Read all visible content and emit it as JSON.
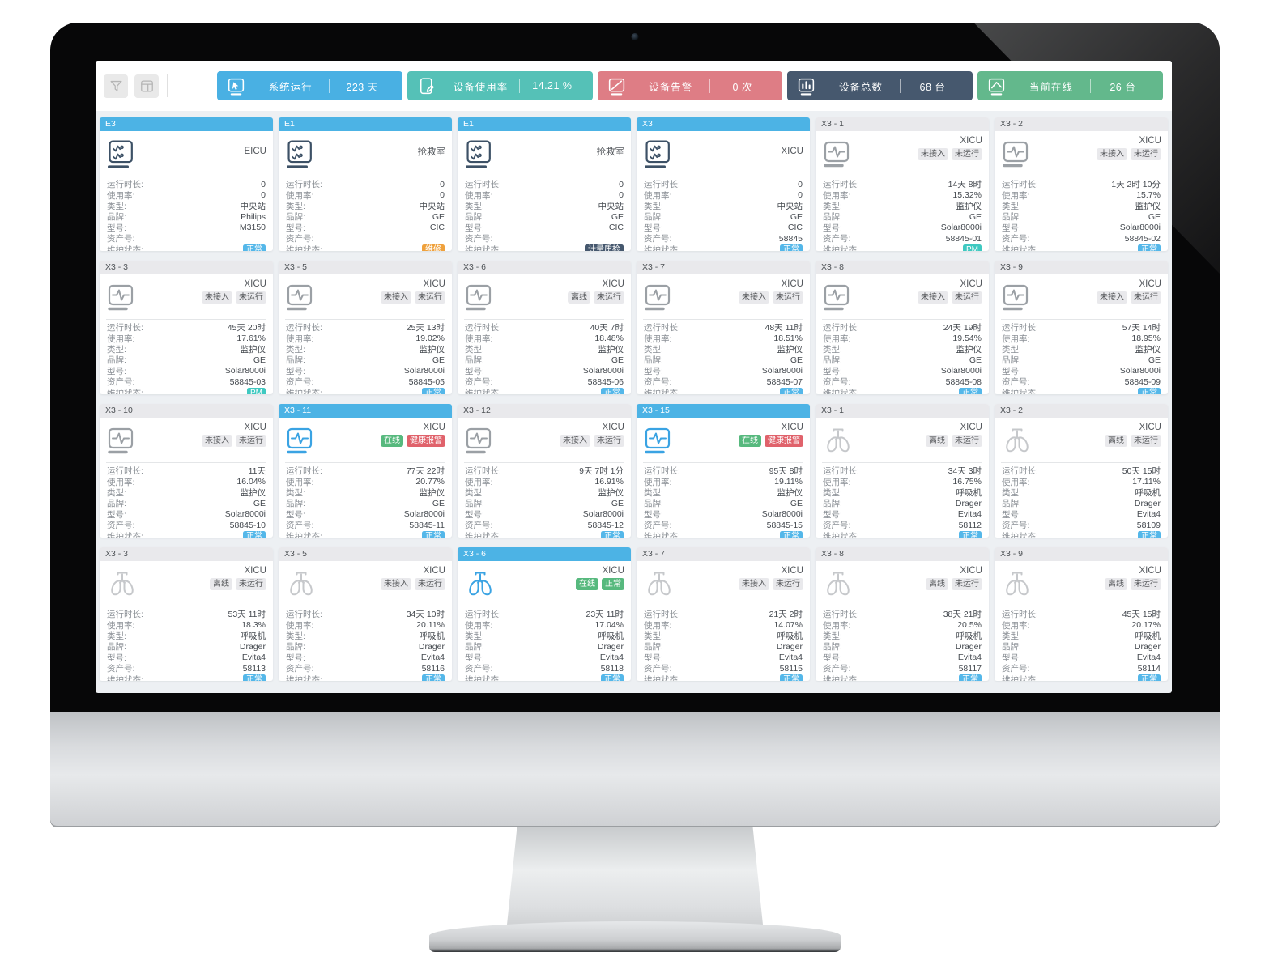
{
  "toolbar": {
    "buttons": [
      {
        "id": "filter",
        "icon": "funnel-icon"
      },
      {
        "id": "layout",
        "icon": "layout-icon"
      }
    ],
    "stats": [
      {
        "id": "system-uptime",
        "label": "系统运行",
        "value": "223 天",
        "color": "#49b0e3",
        "icon": "cursor-screen"
      },
      {
        "id": "usage-rate",
        "label": "设备使用率",
        "value": "14.21 %",
        "color": "#55c1b7",
        "icon": "tablet-edit"
      },
      {
        "id": "device-alerts",
        "label": "设备告警",
        "value": "0 次",
        "color": "#de7d85",
        "icon": "screen-alert"
      },
      {
        "id": "device-total",
        "label": "设备总数",
        "value": "68 台",
        "color": "#46586e",
        "icon": "bar-chart"
      },
      {
        "id": "online-now",
        "label": "当前在线",
        "value": "26 台",
        "color": "#63b88c",
        "icon": "trend-line"
      }
    ]
  },
  "field_labels": [
    "运行时长:",
    "使用率:",
    "类型:",
    "品牌:",
    "型号:",
    "资产号:",
    "维护状态:"
  ],
  "colors": {
    "header_blue": "#4cb3e5",
    "header_gray": "#e9e9ec",
    "badge_normal_blue": "#54b7e9",
    "badge_repair_orange": "#efa13c",
    "badge_qc_navy": "#46586e",
    "badge_pm_teal": "#3fc9c1",
    "badge_online_green": "#57b97e",
    "badge_alarm_red": "#e0626b",
    "badge_offline_gray": "#e9e9ec"
  },
  "cards": [
    {
      "header": "E3",
      "hstyle": "blue",
      "room": "EICU",
      "icon": "central",
      "badges": [],
      "values": [
        "0",
        "0",
        "中央站",
        "Philips",
        "M3150",
        ""
      ],
      "maint": {
        "text": "正常",
        "type": "blue"
      }
    },
    {
      "header": "E1",
      "hstyle": "blue",
      "room": "抢救室",
      "icon": "central",
      "badges": [],
      "values": [
        "0",
        "0",
        "中央站",
        "GE",
        "CIC",
        ""
      ],
      "maint": {
        "text": "维修",
        "type": "orange"
      }
    },
    {
      "header": "E1",
      "hstyle": "blue",
      "room": "抢救室",
      "icon": "central",
      "badges": [],
      "values": [
        "0",
        "0",
        "中央站",
        "GE",
        "CIC",
        ""
      ],
      "maint": {
        "text": "计量质检",
        "type": "navy"
      }
    },
    {
      "header": "X3",
      "hstyle": "blue",
      "room": "XICU",
      "icon": "central",
      "badges": [],
      "values": [
        "0",
        "0",
        "中央站",
        "GE",
        "CIC",
        "58845"
      ],
      "maint": {
        "text": "正常",
        "type": "blue"
      }
    },
    {
      "header": "X3 - 1",
      "hstyle": "gray",
      "room": "XICU",
      "icon": "monitor",
      "badges": [
        {
          "text": "未接入",
          "type": "gray"
        },
        {
          "text": "未运行",
          "type": "gray"
        }
      ],
      "values": [
        "14天 8时",
        "15.32%",
        "监护仪",
        "GE",
        "Solar8000i",
        "58845-01"
      ],
      "maint": {
        "text": "PM",
        "type": "teal"
      }
    },
    {
      "header": "X3 - 2",
      "hstyle": "gray",
      "room": "XICU",
      "icon": "monitor",
      "badges": [
        {
          "text": "未接入",
          "type": "gray"
        },
        {
          "text": "未运行",
          "type": "gray"
        }
      ],
      "values": [
        "1天 2时 10分",
        "15.7%",
        "监护仪",
        "GE",
        "Solar8000i",
        "58845-02"
      ],
      "maint": {
        "text": "正常",
        "type": "blue"
      }
    },
    {
      "header": "X3 - 3",
      "hstyle": "gray",
      "room": "XICU",
      "icon": "monitor",
      "badges": [
        {
          "text": "未接入",
          "type": "gray"
        },
        {
          "text": "未运行",
          "type": "gray"
        }
      ],
      "values": [
        "45天 20时",
        "17.61%",
        "监护仪",
        "GE",
        "Solar8000i",
        "58845-03"
      ],
      "maint": {
        "text": "PM",
        "type": "teal"
      }
    },
    {
      "header": "X3 - 5",
      "hstyle": "gray",
      "room": "XICU",
      "icon": "monitor",
      "badges": [
        {
          "text": "未接入",
          "type": "gray"
        },
        {
          "text": "未运行",
          "type": "gray"
        }
      ],
      "values": [
        "25天 13时",
        "19.02%",
        "监护仪",
        "GE",
        "Solar8000i",
        "58845-05"
      ],
      "maint": {
        "text": "正常",
        "type": "blue"
      }
    },
    {
      "header": "X3 - 6",
      "hstyle": "gray",
      "room": "XICU",
      "icon": "monitor",
      "badges": [
        {
          "text": "离线",
          "type": "gray"
        },
        {
          "text": "未运行",
          "type": "gray"
        }
      ],
      "values": [
        "40天 7时",
        "18.48%",
        "监护仪",
        "GE",
        "Solar8000i",
        "58845-06"
      ],
      "maint": {
        "text": "正常",
        "type": "blue"
      }
    },
    {
      "header": "X3 - 7",
      "hstyle": "gray",
      "room": "XICU",
      "icon": "monitor",
      "badges": [
        {
          "text": "未接入",
          "type": "gray"
        },
        {
          "text": "未运行",
          "type": "gray"
        }
      ],
      "values": [
        "48天 11时",
        "18.51%",
        "监护仪",
        "GE",
        "Solar8000i",
        "58845-07"
      ],
      "maint": {
        "text": "正常",
        "type": "blue"
      }
    },
    {
      "header": "X3 - 8",
      "hstyle": "gray",
      "room": "XICU",
      "icon": "monitor",
      "badges": [
        {
          "text": "未接入",
          "type": "gray"
        },
        {
          "text": "未运行",
          "type": "gray"
        }
      ],
      "values": [
        "24天 19时",
        "19.54%",
        "监护仪",
        "GE",
        "Solar8000i",
        "58845-08"
      ],
      "maint": {
        "text": "正常",
        "type": "blue"
      }
    },
    {
      "header": "X3 - 9",
      "hstyle": "gray",
      "room": "XICU",
      "icon": "monitor",
      "badges": [
        {
          "text": "未接入",
          "type": "gray"
        },
        {
          "text": "未运行",
          "type": "gray"
        }
      ],
      "values": [
        "57天 14时",
        "18.95%",
        "监护仪",
        "GE",
        "Solar8000i",
        "58845-09"
      ],
      "maint": {
        "text": "正常",
        "type": "blue"
      }
    },
    {
      "header": "X3 - 10",
      "hstyle": "gray",
      "room": "XICU",
      "icon": "monitor",
      "badges": [
        {
          "text": "未接入",
          "type": "gray"
        },
        {
          "text": "未运行",
          "type": "gray"
        }
      ],
      "values": [
        "11天",
        "16.04%",
        "监护仪",
        "GE",
        "Solar8000i",
        "58845-10"
      ],
      "maint": {
        "text": "正常",
        "type": "blue"
      }
    },
    {
      "header": "X3 - 11",
      "hstyle": "blue",
      "room": "XICU",
      "icon": "monitor-online",
      "badges": [
        {
          "text": "在线",
          "type": "green"
        },
        {
          "text": "健康报警",
          "type": "red"
        }
      ],
      "values": [
        "77天 22时",
        "20.77%",
        "监护仪",
        "GE",
        "Solar8000i",
        "58845-11"
      ],
      "maint": {
        "text": "正常",
        "type": "blue"
      }
    },
    {
      "header": "X3 - 12",
      "hstyle": "gray",
      "room": "XICU",
      "icon": "monitor",
      "badges": [
        {
          "text": "未接入",
          "type": "gray"
        },
        {
          "text": "未运行",
          "type": "gray"
        }
      ],
      "values": [
        "9天 7时 1分",
        "16.91%",
        "监护仪",
        "GE",
        "Solar8000i",
        "58845-12"
      ],
      "maint": {
        "text": "正常",
        "type": "blue"
      }
    },
    {
      "header": "X3 - 15",
      "hstyle": "blue",
      "room": "XICU",
      "icon": "monitor-online",
      "badges": [
        {
          "text": "在线",
          "type": "green"
        },
        {
          "text": "健康报警",
          "type": "red"
        }
      ],
      "values": [
        "95天 8时",
        "19.11%",
        "监护仪",
        "GE",
        "Solar8000i",
        "58845-15"
      ],
      "maint": {
        "text": "正常",
        "type": "blue"
      }
    },
    {
      "header": "X3 - 1",
      "hstyle": "gray",
      "room": "XICU",
      "icon": "lungs",
      "badges": [
        {
          "text": "离线",
          "type": "gray"
        },
        {
          "text": "未运行",
          "type": "gray"
        }
      ],
      "values": [
        "34天 3时",
        "16.75%",
        "呼吸机",
        "Drager",
        "Evita4",
        "58112"
      ],
      "maint": {
        "text": "正常",
        "type": "blue"
      }
    },
    {
      "header": "X3 - 2",
      "hstyle": "gray",
      "room": "XICU",
      "icon": "lungs",
      "badges": [
        {
          "text": "离线",
          "type": "gray"
        },
        {
          "text": "未运行",
          "type": "gray"
        }
      ],
      "values": [
        "50天 15时",
        "17.11%",
        "呼吸机",
        "Drager",
        "Evita4",
        "58109"
      ],
      "maint": {
        "text": "正常",
        "type": "blue"
      }
    },
    {
      "header": "X3 - 3",
      "hstyle": "gray",
      "room": "XICU",
      "icon": "lungs",
      "badges": [
        {
          "text": "离线",
          "type": "gray"
        },
        {
          "text": "未运行",
          "type": "gray"
        }
      ],
      "values": [
        "53天 11时",
        "18.3%",
        "呼吸机",
        "Drager",
        "Evita4",
        "58113"
      ],
      "maint": {
        "text": "正常",
        "type": "blue"
      }
    },
    {
      "header": "X3 - 5",
      "hstyle": "gray",
      "room": "XICU",
      "icon": "lungs",
      "badges": [
        {
          "text": "未接入",
          "type": "gray"
        },
        {
          "text": "未运行",
          "type": "gray"
        }
      ],
      "values": [
        "34天 10时",
        "20.11%",
        "呼吸机",
        "Drager",
        "Evita4",
        "58116"
      ],
      "maint": {
        "text": "正常",
        "type": "blue"
      }
    },
    {
      "header": "X3 - 6",
      "hstyle": "blue",
      "room": "XICU",
      "icon": "lungs-online",
      "badges": [
        {
          "text": "在线",
          "type": "green"
        },
        {
          "text": "正常",
          "type": "green"
        }
      ],
      "values": [
        "23天 11时",
        "17.04%",
        "呼吸机",
        "Drager",
        "Evita4",
        "58118"
      ],
      "maint": {
        "text": "正常",
        "type": "blue"
      }
    },
    {
      "header": "X3 - 7",
      "hstyle": "gray",
      "room": "XICU",
      "icon": "lungs",
      "badges": [
        {
          "text": "未接入",
          "type": "gray"
        },
        {
          "text": "未运行",
          "type": "gray"
        }
      ],
      "values": [
        "21天 2时",
        "14.07%",
        "呼吸机",
        "Drager",
        "Evita4",
        "58115"
      ],
      "maint": {
        "text": "正常",
        "type": "blue"
      }
    },
    {
      "header": "X3 - 8",
      "hstyle": "gray",
      "room": "XICU",
      "icon": "lungs",
      "badges": [
        {
          "text": "离线",
          "type": "gray"
        },
        {
          "text": "未运行",
          "type": "gray"
        }
      ],
      "values": [
        "38天 21时",
        "20.5%",
        "呼吸机",
        "Drager",
        "Evita4",
        "58117"
      ],
      "maint": {
        "text": "正常",
        "type": "blue"
      }
    },
    {
      "header": "X3 - 9",
      "hstyle": "gray",
      "room": "XICU",
      "icon": "lungs",
      "badges": [
        {
          "text": "离线",
          "type": "gray"
        },
        {
          "text": "未运行",
          "type": "gray"
        }
      ],
      "values": [
        "45天 15时",
        "20.17%",
        "呼吸机",
        "Drager",
        "Evita4",
        "58114"
      ],
      "maint": {
        "text": "正常",
        "type": "blue"
      }
    }
  ]
}
